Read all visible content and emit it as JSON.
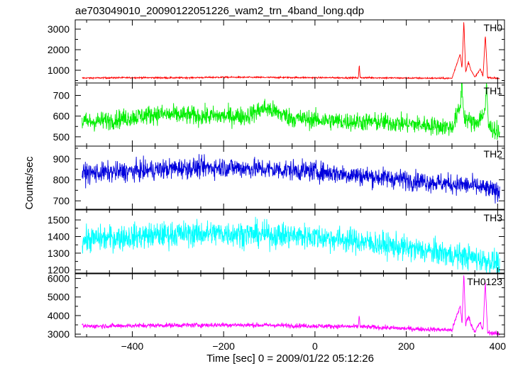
{
  "chart_data": {
    "type": "line",
    "title": "ae703049010_20090122051226_wam2_trn_4band_long.qdp",
    "xlabel": "Time [sec] 0 = 2009/01/22 05:12:26",
    "ylabel": "Counts/sec",
    "xlim": [
      -525,
      415
    ],
    "xticks": [
      -400,
      -200,
      0,
      200,
      400
    ],
    "xtick_labels": [
      "−400",
      "−200",
      "0",
      "200",
      "400"
    ],
    "panels": [
      {
        "name": "TH0",
        "color": "#ff0000",
        "ylim": [
          380,
          3450
        ],
        "yticks": [
          1000,
          2000,
          3000
        ],
        "yticks_minor": [
          500,
          1500,
          2500
        ],
        "points": [
          [
            -510,
            620
          ],
          [
            -400,
            640
          ],
          [
            -300,
            630
          ],
          [
            -200,
            660
          ],
          [
            -100,
            650
          ],
          [
            0,
            640
          ],
          [
            95,
            630
          ],
          [
            97,
            1250
          ],
          [
            99,
            640
          ],
          [
            200,
            620
          ],
          [
            300,
            610
          ],
          [
            318,
            1800
          ],
          [
            322,
            1100
          ],
          [
            326,
            3400
          ],
          [
            330,
            900
          ],
          [
            336,
            1400
          ],
          [
            342,
            1000
          ],
          [
            350,
            650
          ],
          [
            362,
            1050
          ],
          [
            368,
            700
          ],
          [
            373,
            2700
          ],
          [
            378,
            650
          ],
          [
            405,
            600
          ]
        ]
      },
      {
        "name": "TH1",
        "color": "#00ee00",
        "ylim": [
          455,
          760
        ],
        "yticks": [
          500,
          600,
          700
        ],
        "yticks_minor": [
          550,
          650,
          750
        ],
        "points": [
          [
            -510,
            570
          ],
          [
            -450,
            580
          ],
          [
            -350,
            610
          ],
          [
            -250,
            600
          ],
          [
            -150,
            600
          ],
          [
            -110,
            640
          ],
          [
            -50,
            590
          ],
          [
            50,
            575
          ],
          [
            150,
            570
          ],
          [
            250,
            555
          ],
          [
            300,
            545
          ],
          [
            318,
            640
          ],
          [
            322,
            760
          ],
          [
            326,
            600
          ],
          [
            335,
            580
          ],
          [
            350,
            560
          ],
          [
            372,
            620
          ],
          [
            376,
            740
          ],
          [
            380,
            550
          ],
          [
            405,
            520
          ]
        ]
      },
      {
        "name": "TH2",
        "color": "#0000dd",
        "ylim": [
          660,
          960
        ],
        "yticks": [
          700,
          800,
          900
        ],
        "yticks_minor": [
          750,
          850,
          950
        ],
        "points": [
          [
            -510,
            830
          ],
          [
            -400,
            840
          ],
          [
            -300,
            855
          ],
          [
            -200,
            860
          ],
          [
            -100,
            850
          ],
          [
            0,
            840
          ],
          [
            100,
            820
          ],
          [
            200,
            800
          ],
          [
            300,
            780
          ],
          [
            350,
            770
          ],
          [
            405,
            740
          ]
        ]
      },
      {
        "name": "TH3",
        "color": "#00ffff",
        "ylim": [
          1180,
          1560
        ],
        "yticks": [
          1200,
          1300,
          1400,
          1500
        ],
        "yticks_minor": [
          1250,
          1350,
          1450
        ],
        "points": [
          [
            -510,
            1380
          ],
          [
            -400,
            1400
          ],
          [
            -300,
            1415
          ],
          [
            -200,
            1420
          ],
          [
            -100,
            1410
          ],
          [
            0,
            1400
          ],
          [
            100,
            1370
          ],
          [
            200,
            1330
          ],
          [
            300,
            1290
          ],
          [
            350,
            1270
          ],
          [
            405,
            1240
          ]
        ]
      },
      {
        "name": "TH0123",
        "color": "#ff00ff",
        "ylim": [
          2850,
          6250
        ],
        "yticks": [
          3000,
          4000,
          5000,
          6000
        ],
        "yticks_minor": [
          3500,
          4500,
          5500
        ],
        "points": [
          [
            -510,
            3420
          ],
          [
            -400,
            3460
          ],
          [
            -300,
            3480
          ],
          [
            -200,
            3500
          ],
          [
            -100,
            3480
          ],
          [
            0,
            3440
          ],
          [
            95,
            3400
          ],
          [
            97,
            4050
          ],
          [
            99,
            3400
          ],
          [
            200,
            3300
          ],
          [
            300,
            3220
          ],
          [
            318,
            4500
          ],
          [
            322,
            3600
          ],
          [
            326,
            6200
          ],
          [
            330,
            3500
          ],
          [
            336,
            4000
          ],
          [
            342,
            3500
          ],
          [
            350,
            3150
          ],
          [
            362,
            3600
          ],
          [
            368,
            3200
          ],
          [
            373,
            5800
          ],
          [
            378,
            3100
          ],
          [
            405,
            3000
          ]
        ]
      }
    ]
  }
}
